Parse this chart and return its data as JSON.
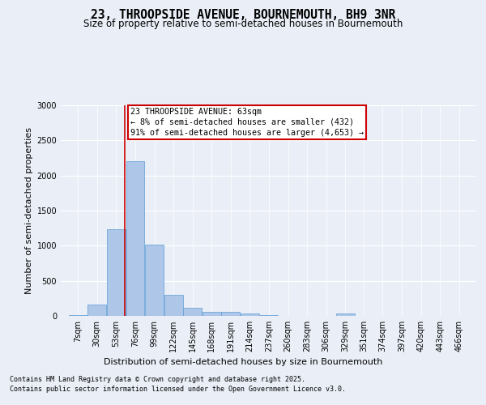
{
  "title": "23, THROOPSIDE AVENUE, BOURNEMOUTH, BH9 3NR",
  "subtitle": "Size of property relative to semi-detached houses in Bournemouth",
  "xlabel": "Distribution of semi-detached houses by size in Bournemouth",
  "ylabel": "Number of semi-detached properties",
  "footnote1": "Contains HM Land Registry data © Crown copyright and database right 2025.",
  "footnote2": "Contains public sector information licensed under the Open Government Licence v3.0.",
  "annotation_title": "23 THROOPSIDE AVENUE: 63sqm",
  "annotation_line1": "← 8% of semi-detached houses are smaller (432)",
  "annotation_line2": "91% of semi-detached houses are larger (4,653) →",
  "property_size": 63,
  "bar_labels": [
    "7sqm",
    "30sqm",
    "53sqm",
    "76sqm",
    "99sqm",
    "122sqm",
    "145sqm",
    "168sqm",
    "191sqm",
    "214sqm",
    "237sqm",
    "260sqm",
    "283sqm",
    "306sqm",
    "329sqm",
    "351sqm",
    "374sqm",
    "397sqm",
    "420sqm",
    "443sqm",
    "466sqm"
  ],
  "bar_edges": [
    7,
    30,
    53,
    76,
    99,
    122,
    145,
    168,
    191,
    214,
    237,
    260,
    283,
    306,
    329,
    351,
    374,
    397,
    420,
    443,
    466
  ],
  "bar_values": [
    10,
    160,
    1230,
    2200,
    1020,
    300,
    110,
    60,
    55,
    40,
    15,
    5,
    0,
    0,
    30,
    0,
    0,
    0,
    0,
    0,
    0
  ],
  "bar_color": "#aec6e8",
  "bar_edge_color": "#5b9bd5",
  "vline_color": "#cc0000",
  "vline_x": 63,
  "ylim": [
    0,
    3000
  ],
  "yticks": [
    0,
    500,
    1000,
    1500,
    2000,
    2500,
    3000
  ],
  "bg_color": "#eaeff7",
  "plot_bg_color": "#eaeff7",
  "annotation_box_color": "#cc0000",
  "title_fontsize": 10.5,
  "subtitle_fontsize": 8.5,
  "axis_label_fontsize": 8.0,
  "tick_fontsize": 7.0,
  "annotation_fontsize": 7.2,
  "footnote_fontsize": 6.0
}
